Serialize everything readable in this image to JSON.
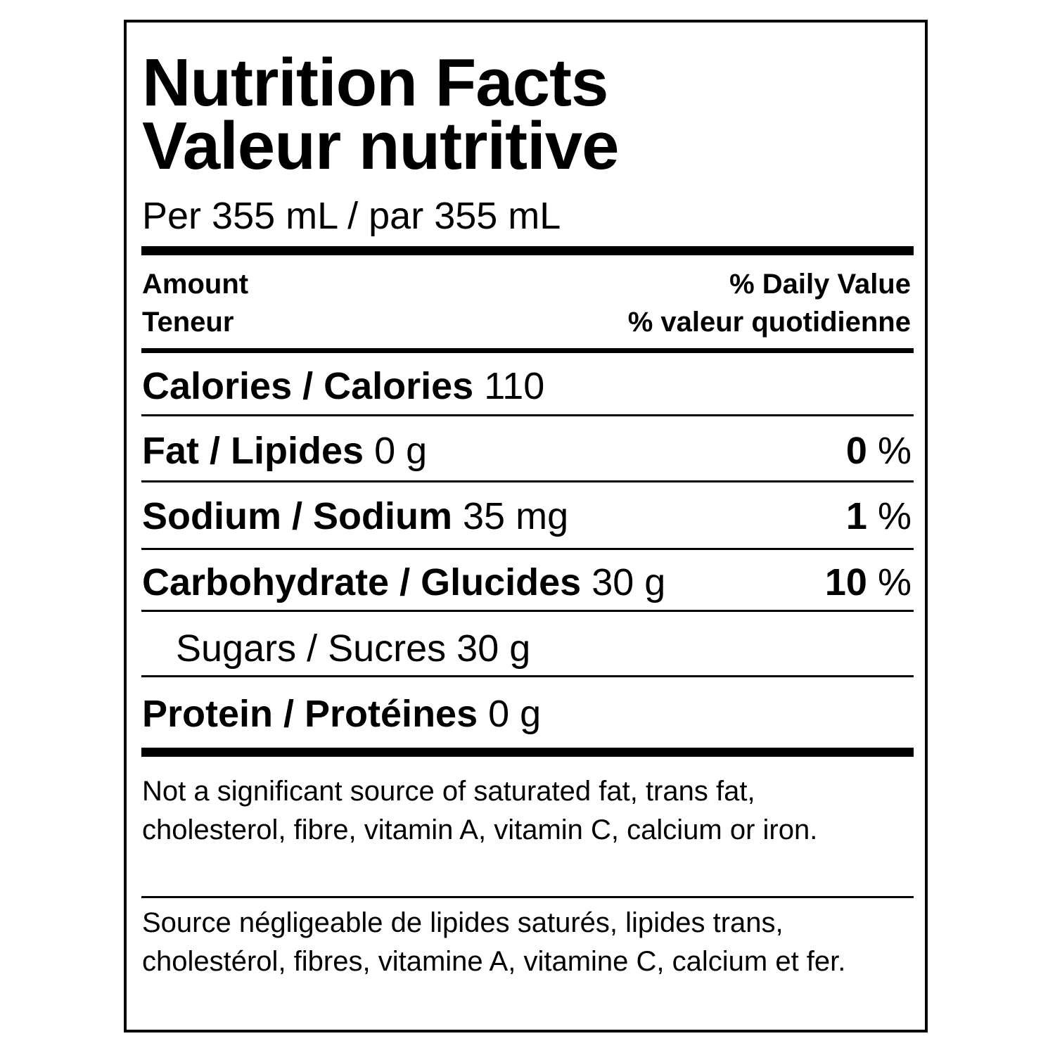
{
  "title_en": "Nutrition Facts",
  "title_fr": "Valeur nutritive",
  "serving": "Per 355 mL / par 355 mL",
  "header": {
    "amount_en": "Amount",
    "amount_fr": "Teneur",
    "dv_en": "% Daily Value",
    "dv_fr": "% valeur quotidienne"
  },
  "rows": [
    {
      "label": "Calories / Calories",
      "amount": "110",
      "dv": "",
      "dv_unit": ""
    },
    {
      "label": "Fat / Lipides",
      "amount": "0 g",
      "dv": "0",
      "dv_unit": " %"
    },
    {
      "label": "Sodium / Sodium",
      "amount": "35 mg",
      "dv": "1",
      "dv_unit": " %"
    },
    {
      "label": "Carbohydrate / Glucides",
      "amount": "30 g",
      "dv": "10",
      "dv_unit": " %"
    },
    {
      "label": "Sugars / Sucres 30 g"
    },
    {
      "label": "Protein / Protéines",
      "amount": "0 g"
    }
  ],
  "footnote_en": "Not a significant source of saturated fat, trans fat, cholesterol, fibre, vitamin A, vitamin C, calcium or iron.",
  "footnote_fr": "Source négligeable de lipides saturés, lipides trans, cholestérol, fibres, vitamine A, vitamine C, calcium et fer."
}
